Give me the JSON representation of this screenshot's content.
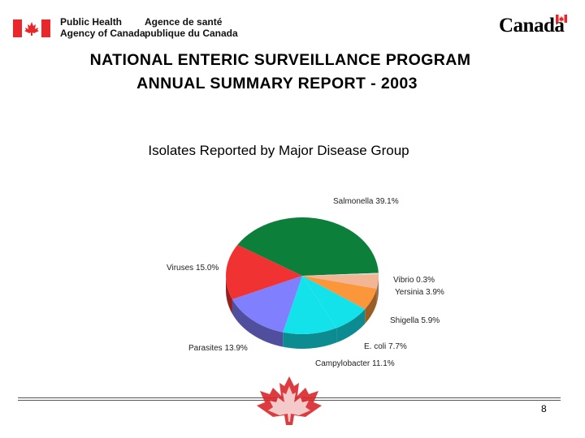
{
  "header": {
    "agency_en_line1": "Public Health",
    "agency_en_line2": "Agency of Canada",
    "agency_fr_line1": "Agence de santé",
    "agency_fr_line2": "publique du Canada",
    "wordmark": "Canada"
  },
  "title_line1": "NATIONAL  ENTERIC  SURVEILLANCE  PROGRAM",
  "title_line2": "ANNUAL SUMMARY REPORT - 2003",
  "page_number": "8",
  "colors": {
    "salmonella": "#0c7f3a",
    "vibrio": "#dedede",
    "yersinia": "#f2b694",
    "shigella": "#fb963a",
    "ecoli": "#14e2ea",
    "campylobacter": "#14e2ea",
    "parasites": "#8080ff",
    "viruses": "#f03232",
    "flag_red": "#e8282b"
  },
  "chart_data": {
    "type": "pie",
    "title": "Isolates Reported by Major Disease Group",
    "slices": [
      {
        "label": "Salmonella 39.1%",
        "value": 39.1,
        "color": "#0c7f3a"
      },
      {
        "label": "Vibrio 0.3%",
        "value": 0.3,
        "color": "#dedede"
      },
      {
        "label": "Yersinia 3.9%",
        "value": 3.9,
        "color": "#f2b694"
      },
      {
        "label": "Shigella 5.9%",
        "value": 5.9,
        "color": "#fb963a"
      },
      {
        "label": "E. coli 7.7%",
        "value": 7.7,
        "color": "#14e2ea"
      },
      {
        "label": "Campylobacter 11.1%",
        "value": 11.1,
        "color": "#14e2ea"
      },
      {
        "label": "Parasites 13.9%",
        "value": 13.9,
        "color": "#8080ff"
      },
      {
        "label": "Viruses 15.0%",
        "value": 15.0,
        "color": "#f03232"
      }
    ],
    "legend": "none"
  }
}
